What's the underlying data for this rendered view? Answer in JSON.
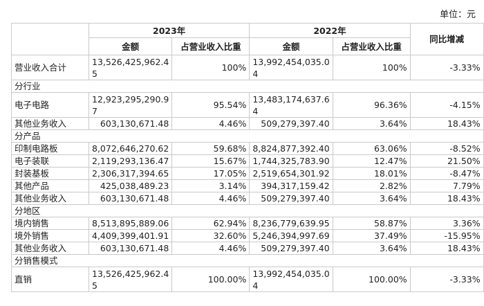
{
  "unit": "单位：元",
  "header": {
    "y2023": "2023年",
    "y2022": "2022年",
    "yoy": "同比增减",
    "amount": "金额",
    "ratio": "占营业收入比重"
  },
  "total": {
    "label": "营业收入合计",
    "a23": "13,526,425,962.45",
    "r23": "100%",
    "a22": "13,992,454,035.04",
    "r22": "100%",
    "yoy": "-3.33%"
  },
  "sections": [
    {
      "title": "分行业",
      "rows": [
        {
          "label": "电子电路",
          "a23": "12,923,295,290.97",
          "r23": "95.54%",
          "a22": "13,483,174,637.64",
          "r22": "96.36%",
          "yoy": "-4.15%"
        },
        {
          "label": "其他业务收入",
          "a23": "603,130,671.48",
          "r23": "4.46%",
          "a22": "509,279,397.40",
          "r22": "3.64%",
          "yoy": "18.43%"
        }
      ]
    },
    {
      "title": "分产品",
      "rows": [
        {
          "label": "印制电路板",
          "a23": "8,072,646,270.62",
          "r23": "59.68%",
          "a22": "8,824,877,392.40",
          "r22": "63.06%",
          "yoy": "-8.52%"
        },
        {
          "label": "电子装联",
          "a23": "2,119,293,136.47",
          "r23": "15.67%",
          "a22": "1,744,325,783.90",
          "r22": "12.47%",
          "yoy": "21.50%"
        },
        {
          "label": "封装基板",
          "a23": "2,306,317,394.65",
          "r23": "17.05%",
          "a22": "2,519,654,301.92",
          "r22": "18.01%",
          "yoy": "-8.47%"
        },
        {
          "label": "其他产品",
          "a23": "425,038,489.23",
          "r23": "3.14%",
          "a22": "394,317,159.42",
          "r22": "2.82%",
          "yoy": "7.79%"
        },
        {
          "label": "其他业务收入",
          "a23": "603,130,671.48",
          "r23": "4.46%",
          "a22": "509,279,397.40",
          "r22": "3.64%",
          "yoy": "18.43%"
        }
      ]
    },
    {
      "title": "分地区",
      "rows": [
        {
          "label": "境内销售",
          "a23": "8,513,895,889.06",
          "r23": "62.94%",
          "a22": "8,236,779,639.95",
          "r22": "58.87%",
          "yoy": "3.36%"
        },
        {
          "label": "境外销售",
          "a23": "4,409,399,401.91",
          "r23": "32.60%",
          "a22": "5,246,394,997.69",
          "r22": "37.49%",
          "yoy": "-15.95%"
        },
        {
          "label": "其他业务收入",
          "a23": "603,130,671.48",
          "r23": "4.46%",
          "a22": "509,279,397.40",
          "r22": "3.64%",
          "yoy": "18.43%"
        }
      ]
    },
    {
      "title": "分销售模式",
      "rows": [
        {
          "label": "直销",
          "a23": "13,526,425,962.45",
          "r23": "100.00%",
          "a22": "13,992,454,035.04",
          "r22": "100.00%",
          "yoy": "-3.33%"
        }
      ]
    }
  ]
}
